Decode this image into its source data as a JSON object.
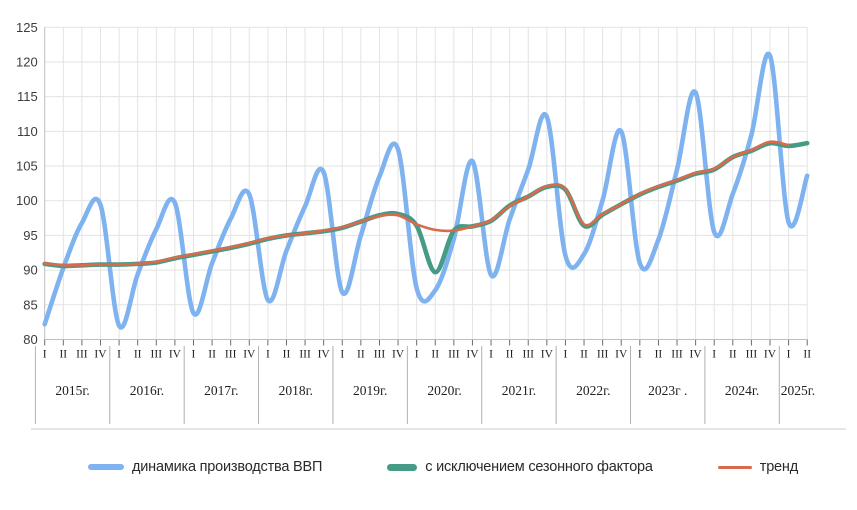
{
  "chart_data": {
    "type": "line",
    "title": "",
    "grid": true,
    "legend_position": "bottom",
    "y_axis": {
      "min": 80,
      "max": 125,
      "step": 5,
      "tick_labels": [
        "80",
        "85",
        "90",
        "95",
        "100",
        "105",
        "110",
        "115",
        "120",
        "125"
      ]
    },
    "x_axis": {
      "quarter_labels": [
        "I",
        "II",
        "III",
        "IV"
      ],
      "years": [
        {
          "label": "2015г.",
          "quarters": 4
        },
        {
          "label": "2016г.",
          "quarters": 4
        },
        {
          "label": "2017г.",
          "quarters": 4
        },
        {
          "label": "2018г.",
          "quarters": 4
        },
        {
          "label": "2019г.",
          "quarters": 4
        },
        {
          "label": "2020г.",
          "quarters": 4
        },
        {
          "label": "2021г.",
          "quarters": 4
        },
        {
          "label": "2022г.",
          "quarters": 4
        },
        {
          "label": "2023г .",
          "quarters": 4
        },
        {
          "label": "2024г.",
          "quarters": 4
        },
        {
          "label": "2025г.",
          "quarters": 2
        }
      ]
    },
    "series": [
      {
        "name": "динамика производства ВВП",
        "color": "#7fb3f0",
        "line_width": 4.6,
        "values": [
          82.2,
          90.3,
          96.8,
          99.4,
          82.0,
          89.4,
          95.9,
          99.7,
          83.8,
          91.0,
          97.4,
          100.9,
          85.7,
          92.8,
          99.2,
          104.1,
          86.8,
          95.0,
          103.5,
          107.4,
          87.4,
          87.1,
          94.5,
          105.7,
          89.3,
          97.3,
          104.5,
          112.1,
          92.1,
          92.3,
          100.1,
          110.0,
          91.0,
          94.4,
          104.5,
          115.6,
          95.5,
          101.0,
          109.5,
          120.9,
          96.9,
          103.6
        ]
      },
      {
        "name": "с исключением сезонного фактора",
        "color": "#459b85",
        "line_width": 4.6,
        "values": [
          90.9,
          90.6,
          90.7,
          90.8,
          90.8,
          90.9,
          91.1,
          91.7,
          92.2,
          92.7,
          93.2,
          93.8,
          94.5,
          95.0,
          95.3,
          95.6,
          96.1,
          97.0,
          97.9,
          98.1,
          96.4,
          89.7,
          95.7,
          96.3,
          97.1,
          99.3,
          100.6,
          102.0,
          101.6,
          96.4,
          98.0,
          99.5,
          100.9,
          102.0,
          102.9,
          103.9,
          104.5,
          106.3,
          107.2,
          108.3,
          107.9,
          108.3
        ]
      },
      {
        "name": "тренд",
        "color": "#da6a4b",
        "line_width": 2.6,
        "values": [
          91.0,
          90.7,
          90.7,
          90.8,
          90.8,
          90.9,
          91.2,
          91.8,
          92.3,
          92.8,
          93.3,
          93.9,
          94.6,
          95.0,
          95.3,
          95.7,
          96.2,
          97.0,
          97.8,
          97.9,
          96.6,
          95.8,
          95.7,
          96.3,
          97.2,
          99.2,
          100.6,
          102.1,
          101.7,
          96.6,
          98.1,
          99.5,
          101.0,
          102.1,
          103.0,
          104.0,
          104.6,
          106.3,
          107.3,
          108.5,
          108.0
        ]
      }
    ],
    "style_colors": {
      "grid": "#e3e3e3",
      "axis_line": "#bdbdbd",
      "tick": "#6a6a6a",
      "quarter_label": "#1f1f1f",
      "year_label": "#1f1f1f",
      "y_label": "#3d3d3d",
      "year_separator": "#b0b0b0",
      "bottom_rule": "#cccccc"
    }
  },
  "legend": {
    "items": [
      {
        "label": "динамика производства ВВП"
      },
      {
        "label": "с исключением сезонного фактора"
      },
      {
        "label": "тренд"
      }
    ]
  }
}
